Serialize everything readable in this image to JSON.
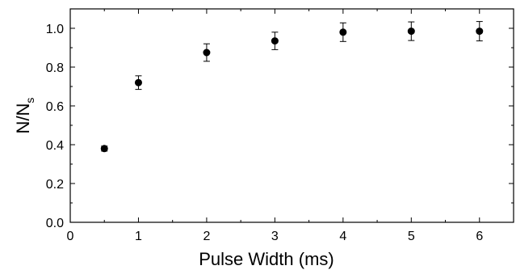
{
  "chart_data": {
    "type": "scatter",
    "xlabel": "Pulse Width (ms)",
    "ylabel": "N/N",
    "ylabel_subscript": "s",
    "xlim": [
      0,
      6.5
    ],
    "ylim": [
      0,
      1.1
    ],
    "x_ticks": [
      "0",
      "1",
      "2",
      "3",
      "4",
      "5",
      "6"
    ],
    "y_ticks": [
      "0.0",
      "0.2",
      "0.4",
      "0.6",
      "0.8",
      "1.0"
    ],
    "x_tick_values": [
      0,
      1,
      2,
      3,
      4,
      5,
      6
    ],
    "y_tick_values": [
      0.0,
      0.2,
      0.4,
      0.6,
      0.8,
      1.0
    ],
    "grid": false,
    "series": [
      {
        "x": [
          0.5,
          1,
          2,
          3,
          4,
          5,
          6
        ],
        "y": [
          0.38,
          0.72,
          0.875,
          0.935,
          0.98,
          0.985,
          0.985
        ],
        "error": [
          0.013,
          0.035,
          0.045,
          0.045,
          0.048,
          0.048,
          0.05
        ],
        "marker": "circle",
        "color": "#000000"
      }
    ]
  }
}
